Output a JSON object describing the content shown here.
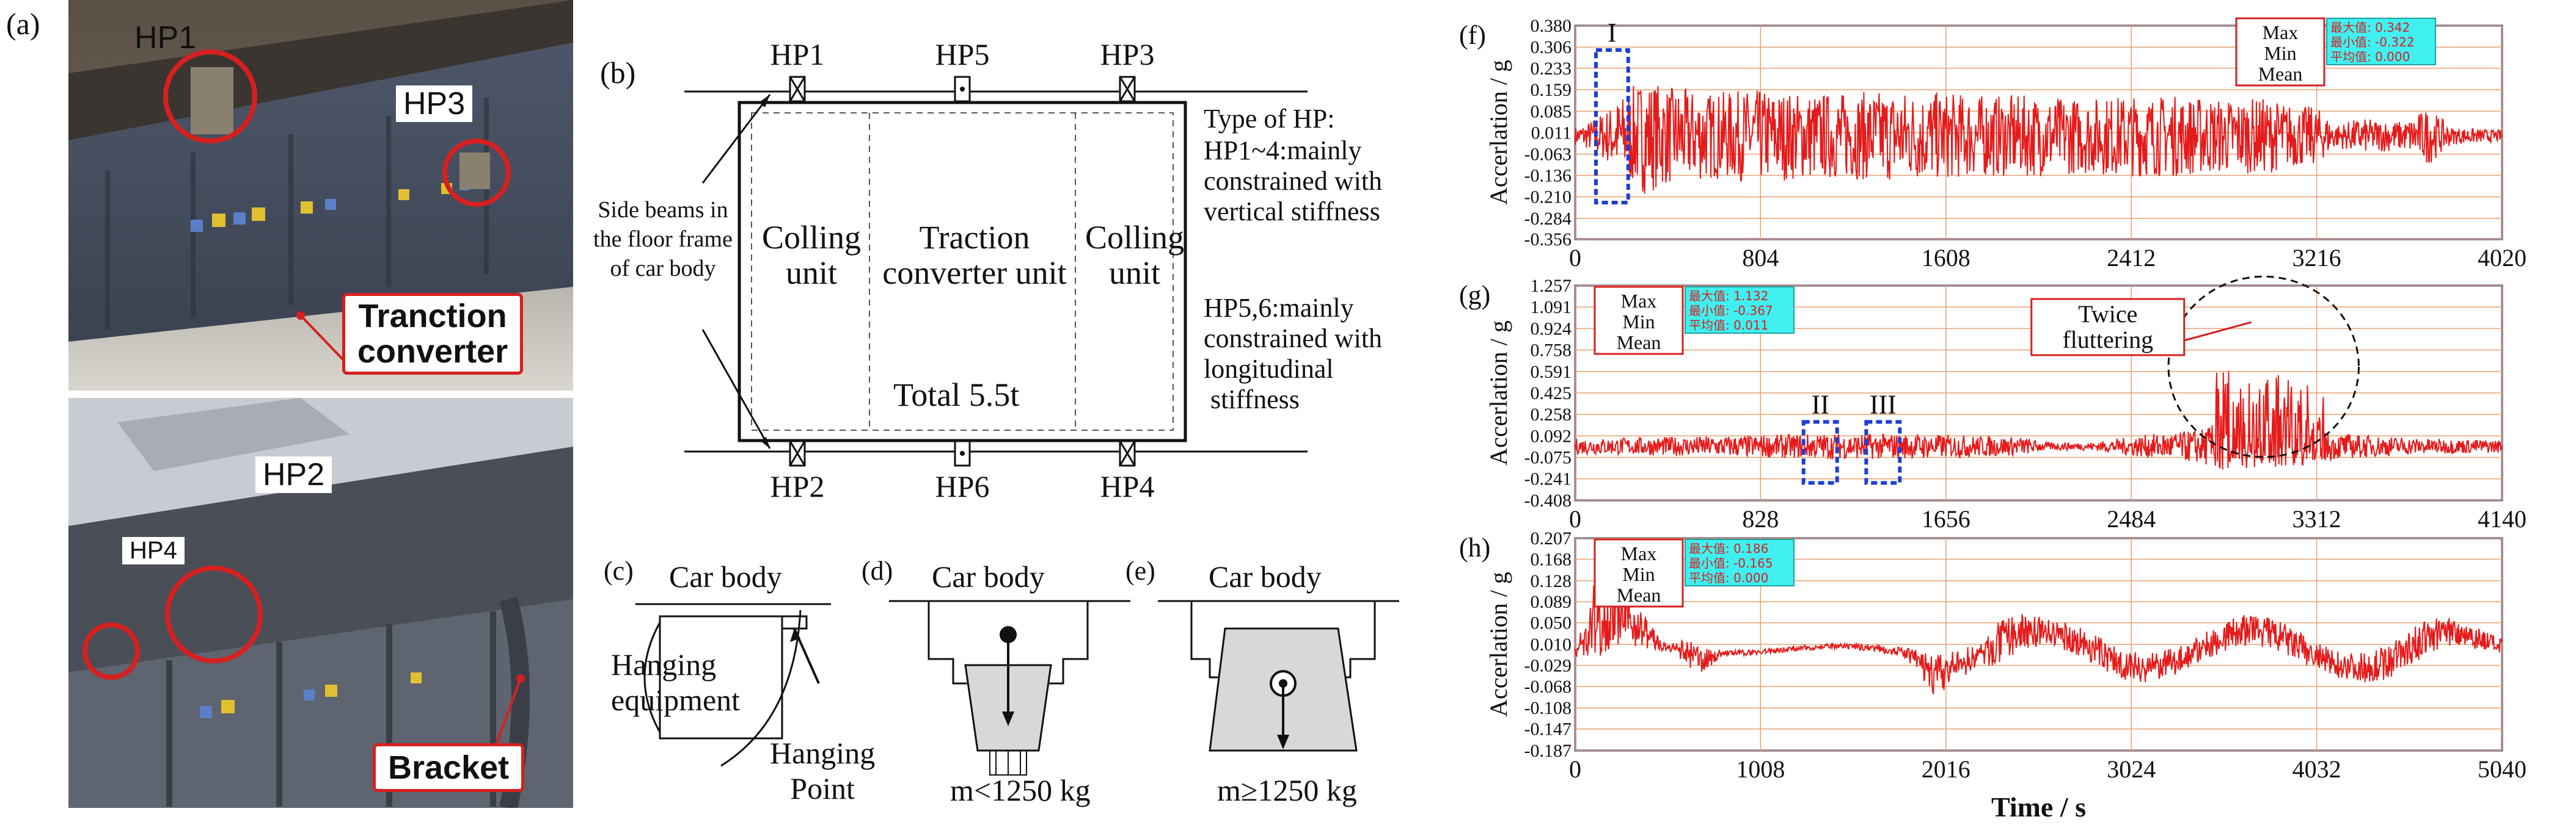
{
  "panels": {
    "a": {
      "letter": "(a)",
      "top_labels": {
        "hp1": "HP1",
        "hp3": "HP3",
        "converter": "Tranction\nconverter"
      },
      "bottom_labels": {
        "hp2": "HP2",
        "hp4": "HP4",
        "bracket": "Bracket"
      }
    },
    "b": {
      "letter": "(b)",
      "hp_top": [
        "HP1",
        "HP5",
        "HP3"
      ],
      "hp_bottom": [
        "HP2",
        "HP6",
        "HP4"
      ],
      "side_beams": "Side beams in\nthe floor frame\nof car body",
      "units": [
        "Colling\nunit",
        "Traction\nconverter unit",
        "Colling\nunit"
      ],
      "total": "Total 5.5t",
      "type_title": "Type of HP:",
      "type_text1": "HP1~4:mainly\nconstrained with\nvertical stiffness",
      "type_text2": "HP5,6:mainly\nconstrained with\nlongitudinal\n stiffness"
    },
    "c": {
      "letter": "(c)",
      "car_body": "Car body",
      "equipment": "Hanging\nequipment",
      "point": "Hanging\nPoint"
    },
    "d": {
      "letter": "(d)",
      "car_body": "Car body",
      "mass": "m<1250 kg"
    },
    "e": {
      "letter": "(e)",
      "car_body": "Car body",
      "mass": "m≥1250 kg"
    }
  },
  "legend_labels": [
    "Max",
    "Min",
    "Mean"
  ],
  "chart_data": [
    {
      "id": "f",
      "letter": "(f)",
      "type": "line",
      "ylabel": "Accerlation / g",
      "xlabel": "",
      "yticks": [
        "0.380",
        "0.306",
        "0.233",
        "0.159",
        "0.085",
        "0.011",
        "-0.063",
        "-0.136",
        "-0.210",
        "-0.284",
        "-0.356"
      ],
      "xticks": [
        "0",
        "804",
        "1608",
        "2412",
        "3216",
        "4020"
      ],
      "xlim": [
        0,
        4020
      ],
      "ylim": [
        -0.356,
        0.38
      ],
      "stats": [
        "最大值: 0.342",
        "最小值: -0.322",
        "平均值: 0.000"
      ],
      "max": 0.342,
      "min": -0.322,
      "mean": 0.0,
      "annotations": [
        {
          "text": "I",
          "x_range": [
            90,
            230
          ]
        }
      ],
      "envelope": [
        [
          0,
          0.03
        ],
        [
          60,
          0.05
        ],
        [
          150,
          0.1
        ],
        [
          230,
          0.16
        ],
        [
          300,
          0.2
        ],
        [
          400,
          0.17
        ],
        [
          600,
          0.15
        ],
        [
          800,
          0.16
        ],
        [
          1000,
          0.15
        ],
        [
          1200,
          0.15
        ],
        [
          1400,
          0.16
        ],
        [
          1600,
          0.15
        ],
        [
          1800,
          0.14
        ],
        [
          2000,
          0.14
        ],
        [
          2200,
          0.13
        ],
        [
          2400,
          0.14
        ],
        [
          2600,
          0.14
        ],
        [
          2800,
          0.13
        ],
        [
          3000,
          0.13
        ],
        [
          3100,
          0.11
        ],
        [
          3216,
          0.1
        ],
        [
          3300,
          0.04
        ],
        [
          3400,
          0.06
        ],
        [
          3600,
          0.05
        ],
        [
          3700,
          0.1
        ],
        [
          3800,
          0.03
        ],
        [
          4020,
          0.02
        ]
      ]
    },
    {
      "id": "g",
      "letter": "(g)",
      "type": "line",
      "ylabel": "Accerlation / g",
      "xlabel": "",
      "yticks": [
        "1.257",
        "1.091",
        "0.924",
        "0.758",
        "0.591",
        "0.425",
        "0.258",
        "0.092",
        "-0.075",
        "-0.241",
        "-0.408"
      ],
      "xticks": [
        "0",
        "828",
        "1656",
        "2484",
        "3312",
        "4140"
      ],
      "xlim": [
        0,
        4140
      ],
      "ylim": [
        -0.408,
        1.257
      ],
      "stats": [
        "最大值: 1.132",
        "最小值: -0.367",
        "平均值: 0.011"
      ],
      "max": 1.132,
      "min": -0.367,
      "mean": 0.011,
      "annotations": [
        {
          "text": "II",
          "x_range": [
            1020,
            1170
          ]
        },
        {
          "text": "III",
          "x_range": [
            1300,
            1450
          ]
        },
        {
          "text": "Twice\nfluttering",
          "x_range": [
            2650,
            3500
          ]
        }
      ],
      "envelope": [
        [
          0,
          0.06
        ],
        [
          300,
          0.07
        ],
        [
          600,
          0.08
        ],
        [
          900,
          0.09
        ],
        [
          1100,
          0.1
        ],
        [
          1400,
          0.1
        ],
        [
          1700,
          0.09
        ],
        [
          2000,
          0.07
        ],
        [
          2100,
          0.03
        ],
        [
          2300,
          0.03
        ],
        [
          2400,
          0.05
        ],
        [
          2500,
          0.08
        ],
        [
          2600,
          0.1
        ],
        [
          2700,
          0.11
        ],
        [
          2800,
          0.14
        ],
        [
          2900,
          0.2
        ],
        [
          3000,
          0.18
        ],
        [
          3100,
          0.18
        ],
        [
          3200,
          0.17
        ],
        [
          3300,
          0.14
        ],
        [
          3400,
          0.1
        ],
        [
          3600,
          0.08
        ],
        [
          3800,
          0.06
        ],
        [
          4140,
          0.05
        ]
      ]
    },
    {
      "id": "h",
      "letter": "(h)",
      "type": "line",
      "ylabel": "Accerlation / g",
      "xlabel": "Time / s",
      "yticks": [
        "0.207",
        "0.168",
        "0.128",
        "0.089",
        "0.050",
        "0.010",
        "-0.029",
        "-0.068",
        "-0.108",
        "-0.147",
        "-0.187"
      ],
      "xticks": [
        "0",
        "1008",
        "2016",
        "3024",
        "4032",
        "5040"
      ],
      "xlim": [
        0,
        5040
      ],
      "ylim": [
        -0.187,
        0.207
      ],
      "stats": [
        "最大值: 0.186",
        "最小值: -0.165",
        "平均值: 0.000"
      ],
      "max": 0.186,
      "min": -0.165,
      "mean": 0.0,
      "annotations": [],
      "envelope": [
        [
          0,
          0.02
        ],
        [
          100,
          0.15
        ],
        [
          250,
          0.1
        ],
        [
          400,
          0.06
        ],
        [
          500,
          0.01
        ],
        [
          650,
          0.06
        ],
        [
          800,
          0.01
        ],
        [
          1100,
          0.01
        ],
        [
          1500,
          0.01
        ],
        [
          1800,
          0.02
        ],
        [
          1950,
          0.08
        ],
        [
          2200,
          0.04
        ],
        [
          2300,
          0.08
        ],
        [
          2600,
          0.05
        ],
        [
          2900,
          0.06
        ],
        [
          3300,
          0.05
        ],
        [
          3600,
          0.06
        ],
        [
          3900,
          0.06
        ],
        [
          4200,
          0.05
        ],
        [
          4500,
          0.07
        ],
        [
          4750,
          0.06
        ],
        [
          5040,
          0.03
        ]
      ]
    }
  ]
}
